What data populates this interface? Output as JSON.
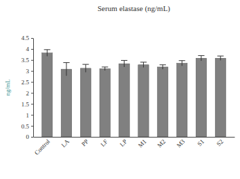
{
  "chart_data": {
    "type": "bar",
    "title": "Serum elastase (ng/mL)",
    "y_label": "ng/mL",
    "categories": [
      "Control",
      "LA",
      "PP",
      "LF",
      "LP",
      "M1",
      "M2",
      "M3",
      "S1",
      "S2"
    ],
    "values": [
      3.82,
      3.08,
      3.12,
      3.1,
      3.33,
      3.28,
      3.18,
      3.35,
      3.58,
      3.58
    ],
    "errors": [
      0.15,
      0.3,
      0.18,
      0.08,
      0.15,
      0.12,
      0.1,
      0.12,
      0.12,
      0.1
    ],
    "color": "#808080",
    "ylim": [
      0,
      4.5
    ],
    "yticks": [
      0,
      0.5,
      1,
      1.5,
      2,
      2.5,
      3,
      3.5,
      4,
      4.5
    ],
    "grid": false
  }
}
